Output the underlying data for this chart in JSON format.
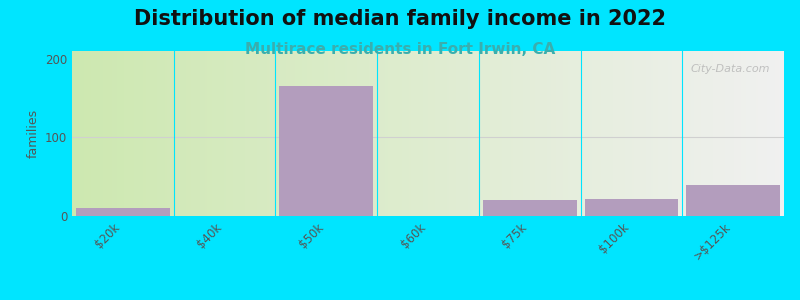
{
  "title": "Distribution of median family income in 2022",
  "subtitle": "Multirace residents in Fort Irwin, CA",
  "ylabel": "families",
  "categories": [
    "$20k",
    "$40k",
    "$50k",
    "$60k",
    "$75k",
    "$100k",
    ">$125k"
  ],
  "values": [
    10,
    0,
    165,
    0,
    20,
    22,
    40
  ],
  "bar_color": "#b39dbd",
  "ylim": [
    0,
    210
  ],
  "yticks": [
    0,
    100,
    200
  ],
  "background_outer": "#00e5ff",
  "background_inner_left": "#cde8b0",
  "background_inner_right": "#f0f0f0",
  "title_fontsize": 15,
  "subtitle_fontsize": 11,
  "subtitle_color": "#3aaeae",
  "watermark": "City-Data.com",
  "grid_color": "#d0d0d0",
  "tick_label_color": "#555555",
  "tick_label_size": 8.5
}
